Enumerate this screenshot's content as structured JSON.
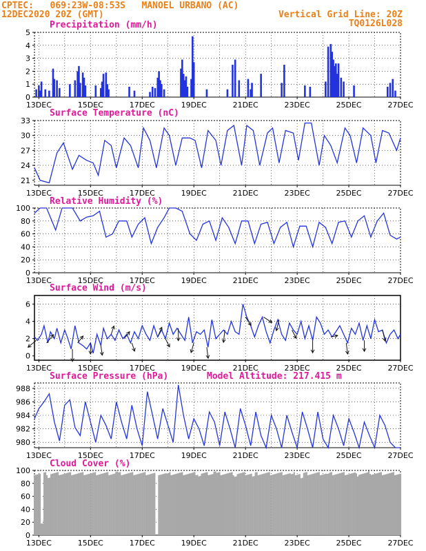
{
  "header": {
    "line1": "CPTEC:   069:23W-08:53S   MANOEL URBANO (AC)",
    "line2_left": "12DEC2020 20Z (GMT)",
    "line2_right": "Vertical Grid Line: 20Z",
    "code": "TQ0126L028"
  },
  "model_altitude": "Model Altitude: 217.415 m",
  "colors": {
    "header": "#e8801a",
    "titles": "#e0189a",
    "series": "#2233dd",
    "bars": "#2233dd",
    "cloud": "#a8a8a8",
    "arrows": "#111111"
  },
  "x_tick_labels": [
    "13DEC",
    "15DEC",
    "17DEC",
    "19DEC",
    "21DEC",
    "23DEC",
    "25DEC",
    "27DEC"
  ],
  "chart_data": [
    {
      "type": "bar",
      "title": "Precipitation (mm/h)",
      "ylim": [
        0,
        5
      ],
      "yticks": [
        0,
        1,
        2,
        3,
        4,
        5
      ],
      "x_range_days": [
        12.83,
        27.0
      ],
      "x": [
        12.9,
        13.0,
        13.05,
        13.1,
        13.25,
        13.4,
        13.55,
        13.6,
        13.7,
        13.8,
        14.2,
        14.4,
        14.5,
        14.55,
        14.6,
        14.7,
        14.75,
        14.8,
        15.2,
        15.4,
        15.45,
        15.5,
        15.6,
        15.65,
        15.7,
        16.5,
        16.7,
        17.3,
        17.4,
        17.5,
        17.6,
        17.65,
        17.7,
        17.75,
        17.85,
        18.5,
        18.55,
        18.6,
        18.65,
        18.7,
        18.75,
        18.9,
        18.95,
        19.0,
        19.5,
        20.3,
        20.5,
        20.6,
        20.75,
        21.1,
        21.2,
        21.25,
        21.6,
        22.4,
        22.5,
        23.3,
        23.5,
        24.1,
        24.2,
        24.3,
        24.35,
        24.4,
        24.45,
        24.5,
        24.55,
        24.6,
        24.7,
        24.8,
        25.2,
        26.5,
        26.6,
        26.7,
        26.8
      ],
      "values": [
        0.6,
        0.9,
        0.5,
        1.2,
        0.6,
        0.5,
        2.2,
        1.4,
        1.3,
        0.7,
        1.0,
        1.3,
        2.0,
        2.4,
        1.1,
        1.9,
        1.5,
        0.9,
        0.9,
        0.7,
        1.2,
        1.8,
        1.9,
        1.0,
        0.6,
        0.8,
        0.5,
        0.4,
        0.8,
        0.7,
        1.5,
        2.0,
        1.3,
        1.0,
        0.6,
        2.2,
        2.9,
        1.8,
        1.3,
        1.6,
        0.8,
        1.4,
        4.7,
        2.7,
        0.6,
        0.6,
        2.5,
        2.9,
        1.3,
        1.4,
        0.6,
        1.1,
        1.8,
        1.1,
        2.5,
        0.9,
        0.8,
        1.2,
        3.9,
        4.1,
        3.5,
        2.9,
        2.4,
        2.6,
        1.8,
        2.6,
        1.5,
        1.2,
        0.9,
        0.8,
        1.1,
        1.4,
        0.5
      ]
    },
    {
      "type": "line",
      "title": "Surface Temperature (nC)",
      "ylim": [
        20,
        33
      ],
      "yticks": [
        21,
        24,
        27,
        30,
        33
      ],
      "x": [
        12.83,
        13.05,
        13.4,
        13.7,
        13.95,
        14.3,
        14.55,
        14.85,
        15.1,
        15.3,
        15.55,
        15.8,
        16.0,
        16.3,
        16.55,
        16.85,
        17.05,
        17.3,
        17.55,
        17.85,
        18.05,
        18.3,
        18.55,
        18.85,
        19.05,
        19.3,
        19.55,
        19.85,
        20.05,
        20.3,
        20.55,
        20.85,
        21.05,
        21.3,
        21.55,
        21.85,
        22.05,
        22.3,
        22.55,
        22.85,
        23.05,
        23.3,
        23.55,
        23.85,
        24.05,
        24.3,
        24.55,
        24.85,
        25.05,
        25.3,
        25.55,
        25.85,
        26.05,
        26.3,
        26.55,
        26.85,
        27.0
      ],
      "values": [
        23.5,
        21.0,
        20.5,
        26.5,
        28.5,
        23.2,
        26.0,
        25.0,
        24.5,
        22.0,
        29.0,
        28.0,
        23.5,
        29.5,
        28.0,
        23.5,
        31.5,
        29.0,
        23.5,
        31.5,
        30.0,
        24.0,
        29.5,
        29.5,
        29.0,
        23.5,
        31.0,
        29.0,
        24.0,
        31.0,
        32.0,
        24.0,
        32.0,
        31.0,
        24.0,
        30.5,
        31.5,
        24.5,
        31.0,
        30.5,
        25.0,
        32.5,
        32.5,
        24.0,
        30.0,
        28.0,
        24.5,
        31.5,
        30.0,
        24.5,
        31.5,
        30.0,
        24.5,
        31.0,
        30.5,
        27.0,
        29.5
      ]
    },
    {
      "type": "line",
      "title": "Relative Humidity (%)",
      "ylim": [
        0,
        100
      ],
      "yticks": [
        0,
        20,
        40,
        60,
        80,
        100
      ],
      "x": [
        12.83,
        13.05,
        13.3,
        13.65,
        13.9,
        14.3,
        14.6,
        14.85,
        15.1,
        15.35,
        15.6,
        15.85,
        16.1,
        16.4,
        16.6,
        16.85,
        17.1,
        17.35,
        17.6,
        17.85,
        18.05,
        18.3,
        18.55,
        18.85,
        19.1,
        19.35,
        19.6,
        19.85,
        20.1,
        20.35,
        20.6,
        20.85,
        21.1,
        21.35,
        21.6,
        21.85,
        22.1,
        22.35,
        22.6,
        22.85,
        23.1,
        23.35,
        23.6,
        23.85,
        24.1,
        24.35,
        24.6,
        24.85,
        25.1,
        25.35,
        25.6,
        25.85,
        26.1,
        26.35,
        26.6,
        26.85,
        27.0
      ],
      "values": [
        92,
        100,
        100,
        66,
        100,
        100,
        80,
        86,
        88,
        95,
        55,
        60,
        80,
        80,
        55,
        75,
        85,
        45,
        70,
        85,
        100,
        100,
        95,
        60,
        50,
        75,
        80,
        50,
        85,
        70,
        45,
        80,
        80,
        45,
        75,
        78,
        45,
        70,
        78,
        40,
        72,
        72,
        40,
        78,
        70,
        45,
        78,
        80,
        55,
        80,
        88,
        55,
        80,
        92,
        58,
        52,
        55
      ]
    },
    {
      "type": "line",
      "title": "Surface Wind (m/s)",
      "ylim": [
        -0.5,
        7
      ],
      "yticks": [
        0,
        2,
        4,
        6
      ],
      "x": [
        12.83,
        12.95,
        13.1,
        13.2,
        13.35,
        13.45,
        13.6,
        13.7,
        13.85,
        14.0,
        14.1,
        14.25,
        14.4,
        14.55,
        14.7,
        14.85,
        15.0,
        15.1,
        15.25,
        15.4,
        15.5,
        15.65,
        15.8,
        15.95,
        16.1,
        16.25,
        16.4,
        16.55,
        16.7,
        16.85,
        17.0,
        17.15,
        17.3,
        17.45,
        17.6,
        17.75,
        17.9,
        18.05,
        18.2,
        18.35,
        18.5,
        18.65,
        18.8,
        18.95,
        19.1,
        19.25,
        19.4,
        19.55,
        19.7,
        19.85,
        20.0,
        20.15,
        20.3,
        20.45,
        20.6,
        20.75,
        20.9,
        21.05,
        21.2,
        21.35,
        21.5,
        21.65,
        21.8,
        21.95,
        22.1,
        22.25,
        22.4,
        22.55,
        22.7,
        22.85,
        23.0,
        23.15,
        23.3,
        23.45,
        23.6,
        23.75,
        23.9,
        24.05,
        24.2,
        24.35,
        24.5,
        24.65,
        24.8,
        24.95,
        25.1,
        25.25,
        25.4,
        25.55,
        25.7,
        25.85,
        26.0,
        26.15,
        26.3,
        26.45,
        26.6,
        26.75,
        26.9,
        27.0
      ],
      "values": [
        2.2,
        1.8,
        2.5,
        3.5,
        1.5,
        2.8,
        2.0,
        3.2,
        1.5,
        3.0,
        2.2,
        0.8,
        3.5,
        1.5,
        1.2,
        0.8,
        1.5,
        0.3,
        2.5,
        1.2,
        3.2,
        2.0,
        2.5,
        1.8,
        3.0,
        2.0,
        2.5,
        1.5,
        2.8,
        2.0,
        3.5,
        2.5,
        1.8,
        3.5,
        2.2,
        3.0,
        2.0,
        3.8,
        2.5,
        3.2,
        2.5,
        1.8,
        4.5,
        1.5,
        2.8,
        2.5,
        3.0,
        1.0,
        4.2,
        2.0,
        2.5,
        3.0,
        2.5,
        4.0,
        2.8,
        2.5,
        6.0,
        4.5,
        3.5,
        2.2,
        3.5,
        4.5,
        2.8,
        1.5,
        3.0,
        4.2,
        2.5,
        1.8,
        3.8,
        3.0,
        2.5,
        4.0,
        2.0,
        3.5,
        1.8,
        4.5,
        3.8,
        2.5,
        3.0,
        2.2,
        2.8,
        3.5,
        2.5,
        1.5,
        3.2,
        2.5,
        3.8,
        1.8,
        3.5,
        2.0,
        4.2,
        2.8,
        3.0,
        1.5,
        2.5,
        3.0,
        2.0,
        2.5
      ],
      "arrows": [
        {
          "x": 12.9,
          "dx": -0.6,
          "dy": -0.5
        },
        {
          "x": 13.3,
          "dx": 0.5,
          "dy": 0.6
        },
        {
          "x": 14.3,
          "dx": 0.0,
          "dy": -0.9
        },
        {
          "x": 14.5,
          "dx": 0.4,
          "dy": 0.5
        },
        {
          "x": 15.0,
          "dx": 0.0,
          "dy": -0.8
        },
        {
          "x": 15.4,
          "dx": 0.1,
          "dy": -0.7
        },
        {
          "x": 15.8,
          "dx": 0.2,
          "dy": 0.6
        },
        {
          "x": 16.3,
          "dx": 0.4,
          "dy": 0.5
        },
        {
          "x": 16.6,
          "dx": 0.2,
          "dy": -0.6
        },
        {
          "x": 17.6,
          "dx": 0.3,
          "dy": 0.7
        },
        {
          "x": 17.9,
          "dx": 0.3,
          "dy": -0.6
        },
        {
          "x": 18.4,
          "dx": 0.0,
          "dy": -0.9
        },
        {
          "x": 19.0,
          "dx": -0.2,
          "dy": -0.7
        },
        {
          "x": 19.5,
          "dx": 0.1,
          "dy": -0.8
        },
        {
          "x": 20.2,
          "dx": -0.1,
          "dy": -0.9
        },
        {
          "x": 21.0,
          "dx": 0.4,
          "dy": -0.6
        },
        {
          "x": 21.7,
          "dx": 0.6,
          "dy": -0.4
        },
        {
          "x": 22.3,
          "dx": -0.2,
          "dy": -0.8
        },
        {
          "x": 22.8,
          "dx": 0.3,
          "dy": -0.6
        },
        {
          "x": 23.6,
          "dx": 0.0,
          "dy": -0.9
        },
        {
          "x": 24.3,
          "dx": 0.5,
          "dy": 0.1
        },
        {
          "x": 24.9,
          "dx": 0.1,
          "dy": -0.8
        },
        {
          "x": 25.6,
          "dx": 0.0,
          "dy": -0.8
        },
        {
          "x": 26.3,
          "dx": 0.2,
          "dy": -0.8
        }
      ]
    },
    {
      "type": "line",
      "title": "Surface Pressure (hPa)",
      "ylim": [
        979.2,
        988.8
      ],
      "yticks": [
        980,
        982,
        984,
        986,
        988
      ],
      "x": [
        12.83,
        13.0,
        13.2,
        13.4,
        13.6,
        13.8,
        14.0,
        14.2,
        14.4,
        14.6,
        14.8,
        15.0,
        15.2,
        15.4,
        15.6,
        15.8,
        16.0,
        16.2,
        16.4,
        16.6,
        16.8,
        17.0,
        17.2,
        17.4,
        17.6,
        17.8,
        18.0,
        18.2,
        18.4,
        18.6,
        18.8,
        19.0,
        19.2,
        19.4,
        19.6,
        19.8,
        20.0,
        20.2,
        20.4,
        20.6,
        20.8,
        21.0,
        21.2,
        21.4,
        21.6,
        21.8,
        22.0,
        22.2,
        22.4,
        22.6,
        22.8,
        23.0,
        23.2,
        23.4,
        23.6,
        23.8,
        24.0,
        24.2,
        24.4,
        24.6,
        24.8,
        25.0,
        25.2,
        25.4,
        25.6,
        25.8,
        26.0,
        26.2,
        26.4,
        26.6,
        26.8,
        27.0
      ],
      "values": [
        983.5,
        985.0,
        986.0,
        987.2,
        983.0,
        980.2,
        985.5,
        986.3,
        982.2,
        981.0,
        986.0,
        983.0,
        980.0,
        984.0,
        982.5,
        980.5,
        986.0,
        983.0,
        980.5,
        985.5,
        982.0,
        979.5,
        987.5,
        984.0,
        980.5,
        985.0,
        982.5,
        980.0,
        988.5,
        984.0,
        980.5,
        983.5,
        982.0,
        979.5,
        984.5,
        983.0,
        979.5,
        984.5,
        982.0,
        978.0,
        985.0,
        982.5,
        979.5,
        984.5,
        981.0,
        978.5,
        984.0,
        982.0,
        979.0,
        984.0,
        981.5,
        978.5,
        984.5,
        982.0,
        978.5,
        984.5,
        980.5,
        978.5,
        984.0,
        982.0,
        979.5,
        983.5,
        981.5,
        979.0,
        983.0,
        981.0,
        979.0,
        984.0,
        982.5,
        980.0,
        979.0,
        978.5
      ]
    },
    {
      "type": "bar",
      "title": "Cloud Cover (%)",
      "ylim": [
        0,
        100
      ],
      "yticks": [
        0,
        20,
        40,
        60,
        80,
        100
      ],
      "x": [
        13.15,
        13.4,
        14.0,
        15.0,
        16.0,
        16.9,
        17.55,
        18.0,
        18.6,
        19.2,
        19.8,
        20.6,
        21.3,
        22.0,
        22.8,
        23.2,
        23.5,
        24.2,
        24.8,
        25.3,
        25.8,
        26.3,
        26.9
      ],
      "values": [
        18,
        90,
        95,
        95,
        97,
        95,
        0,
        94,
        95,
        92,
        98,
        92,
        90,
        95,
        93,
        88,
        95,
        94,
        95,
        93,
        97,
        95,
        95
      ]
    }
  ]
}
